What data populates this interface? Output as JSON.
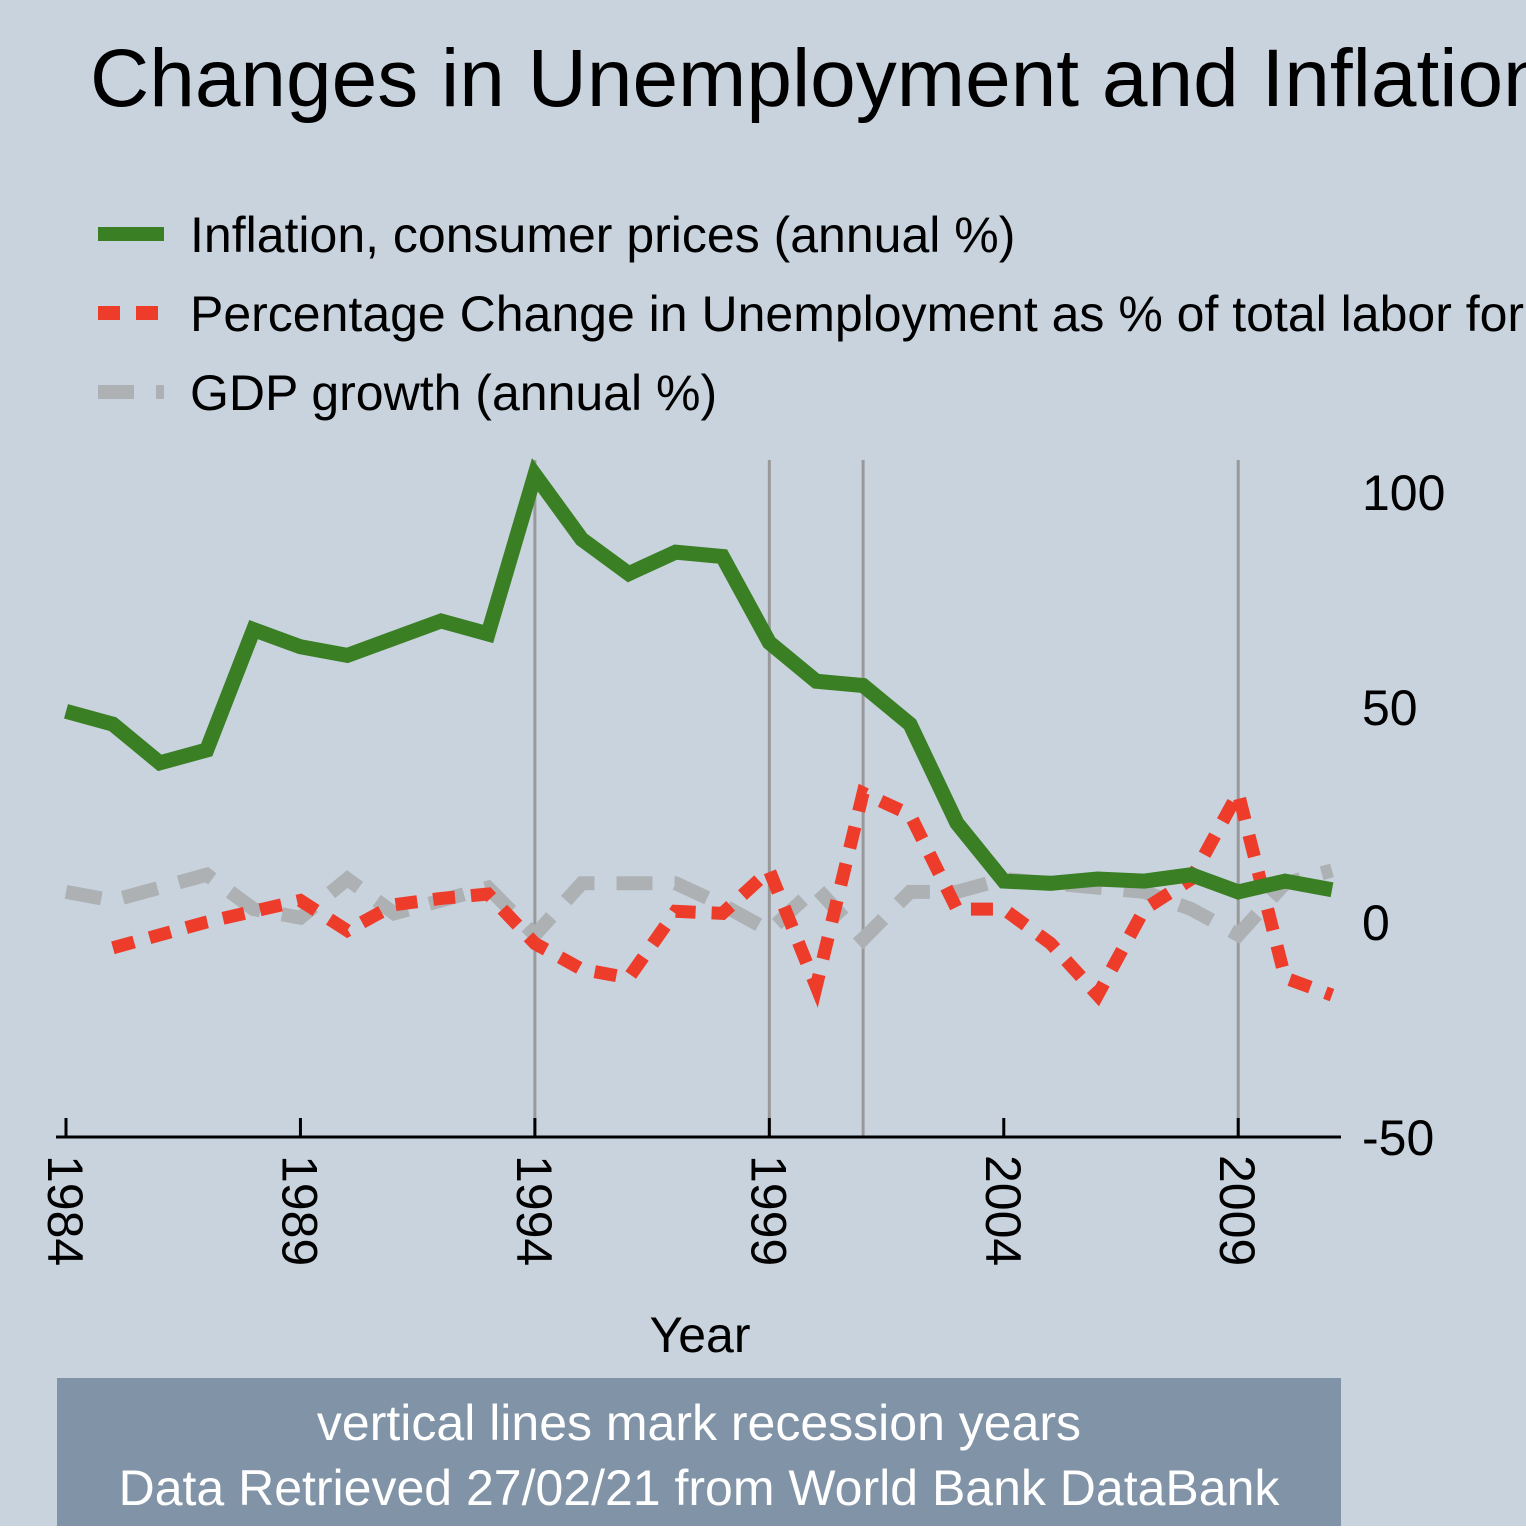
{
  "chart_data": {
    "type": "line",
    "title": "Changes in Unemployment and Inflation",
    "xlabel": "Year",
    "ylabel": "",
    "xlim": [
      1984,
      2011
    ],
    "ylim": [
      -50,
      100
    ],
    "x_ticks": [
      "1984",
      "1989",
      "1994",
      "1999",
      "2004",
      "2009"
    ],
    "y_ticks": [
      "100",
      "50",
      "0",
      "-50"
    ],
    "y_axis_side": "right",
    "grid": false,
    "legend_position": "top-left",
    "recession_years": [
      1994,
      1999,
      2001,
      2009
    ],
    "note_line1": "vertical lines mark recession years",
    "note_line2": "Data Retrieved 27/02/21 from World Bank DataBank",
    "colors": {
      "background": "#c9d3de",
      "note_box": "#8193a7",
      "recession_line": "#999999",
      "inflation": "#3a7f24",
      "unemployment": "#ee3c2b",
      "gdp": "#aeb1b4"
    },
    "series": [
      {
        "name": "Inflation, consumer prices (annual %)",
        "style": "solid",
        "x": [
          1984,
          1985,
          1986,
          1987,
          1988,
          1989,
          1990,
          1991,
          1992,
          1993,
          1994,
          1995,
          1996,
          1997,
          1998,
          1999,
          2000,
          2001,
          2002,
          2003,
          2004,
          2005,
          2006,
          2007,
          2008,
          2009,
          2010,
          2011
        ],
        "values": [
          49,
          46,
          37,
          40,
          68,
          64,
          62,
          66,
          70,
          67,
          104,
          89,
          81,
          86,
          85,
          65,
          56,
          55,
          46,
          23,
          9.5,
          9,
          10,
          9.5,
          11,
          7,
          9.5,
          7.5
        ]
      },
      {
        "name": "Percentage Change in Unemployment as % of total labor force",
        "style": "dashed",
        "x": [
          1985,
          1986,
          1987,
          1988,
          1989,
          1990,
          1991,
          1992,
          1993,
          1994,
          1995,
          1996,
          1997,
          1998,
          1999,
          2000,
          2001,
          2002,
          2003,
          2004,
          2005,
          2006,
          2007,
          2008,
          2009,
          2010,
          2011
        ],
        "values": [
          -6,
          -3,
          0,
          2.5,
          5,
          -2,
          4,
          5.5,
          6.5,
          -5,
          -11,
          -13,
          2.5,
          2,
          12,
          -15,
          30,
          25,
          3,
          3,
          -5,
          -17,
          3,
          10,
          30,
          -13,
          -17
        ]
      },
      {
        "name": "GDP growth (annual %)",
        "style": "dashed",
        "x": [
          1984,
          1985,
          1986,
          1987,
          1988,
          1989,
          1990,
          1991,
          1992,
          1993,
          1994,
          1995,
          1996,
          1997,
          1998,
          1999,
          2000,
          2001,
          2002,
          2003,
          2004,
          2005,
          2006,
          2007,
          2008,
          2009,
          2010,
          2011
        ],
        "values": [
          7,
          5,
          8,
          11,
          3,
          1,
          10,
          2,
          5,
          8,
          -3,
          9,
          9,
          9,
          4,
          -2,
          8,
          -4,
          7,
          7,
          10,
          9,
          8,
          7,
          3,
          -3,
          9,
          12
        ]
      }
    ]
  }
}
